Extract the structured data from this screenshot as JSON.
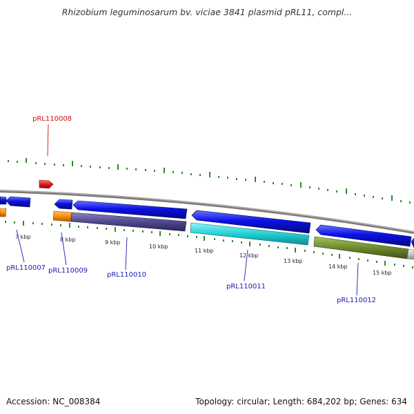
{
  "title": "Rhizobium leguminosarum bv. viciae 3841 plasmid pRL11, compl...",
  "footer": {
    "accession": "Accession: NC_008384",
    "summary": "Topology: circular; Length: 684,202 bp; Genes: 634"
  },
  "colors": {
    "blue": "#0a12e6",
    "red": "#e21a1a",
    "orange": "#f5900e",
    "purple": "#4f488e",
    "cyan": "#22cfd4",
    "olive": "#6e8a2c",
    "grey": "#c8c8c8",
    "tick": "#2b8a2b",
    "label_blue": "#1a1ab0",
    "label_red": "#cc1111"
  },
  "scale_ticks": [
    "7 kbp",
    "8 kbp",
    "9 kbp",
    "10 kbp",
    "11 kbp",
    "12 kbp",
    "13 kbp",
    "14 kbp",
    "15 kbp"
  ],
  "gene_labels": [
    "pRL110007",
    "pRL110008",
    "pRL110009",
    "pRL110010",
    "pRL110011",
    "pRL110012"
  ]
}
